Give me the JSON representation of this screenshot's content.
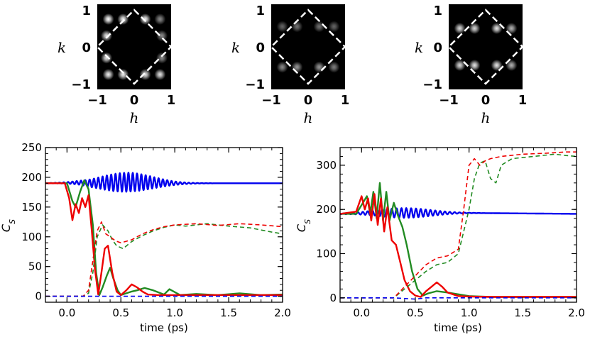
{
  "chart_data": [
    {
      "type": "heatmap",
      "title": "",
      "xlabel": "h",
      "ylabel": "k",
      "xlim": [
        -1.2,
        1.2
      ],
      "ylim": [
        -1.2,
        1.2
      ],
      "xticks": [
        "−1",
        "0",
        "1"
      ],
      "yticks": [
        "−1",
        "0",
        "1"
      ],
      "brillouin_zone": [
        [
          0,
          1
        ],
        [
          1,
          0
        ],
        [
          0,
          -1
        ],
        [
          -1,
          0
        ]
      ],
      "peaks": [
        {
          "h": -0.7,
          "k": 0.75,
          "i": 1.0
        },
        {
          "h": -0.3,
          "k": 0.75,
          "i": 0.95
        },
        {
          "h": 0.3,
          "k": 0.75,
          "i": 0.95
        },
        {
          "h": 0.7,
          "k": 0.75,
          "i": 0.55
        },
        {
          "h": -1.05,
          "k": 0.75,
          "i": 0.35
        },
        {
          "h": -0.75,
          "k": 0.3,
          "i": 0.9
        },
        {
          "h": -0.75,
          "k": -0.3,
          "i": 0.9
        },
        {
          "h": 0.75,
          "k": 0.3,
          "i": 0.55
        },
        {
          "h": 0.75,
          "k": -0.3,
          "i": 0.55
        },
        {
          "h": -0.7,
          "k": -0.75,
          "i": 0.95
        },
        {
          "h": -0.3,
          "k": -0.75,
          "i": 0.95
        },
        {
          "h": 0.3,
          "k": -0.75,
          "i": 0.9
        },
        {
          "h": 0.7,
          "k": -0.75,
          "i": 0.9
        },
        {
          "h": -1.05,
          "k": -0.75,
          "i": 0.35
        }
      ]
    },
    {
      "type": "heatmap",
      "title": "",
      "xlabel": "h",
      "ylabel": "k",
      "xlim": [
        -1.2,
        1.2
      ],
      "ylim": [
        -1.2,
        1.2
      ],
      "xticks": [
        "−1",
        "0",
        "1"
      ],
      "yticks": [
        "−1",
        "0",
        "1"
      ],
      "brillouin_zone": [
        [
          0,
          1
        ],
        [
          1,
          0
        ],
        [
          0,
          -1
        ],
        [
          -1,
          0
        ]
      ],
      "peaks": [
        {
          "h": -1.05,
          "k": 0.55,
          "i": 0.25
        },
        {
          "h": -0.7,
          "k": 0.55,
          "i": 0.4
        },
        {
          "h": -0.3,
          "k": 0.55,
          "i": 0.45
        },
        {
          "h": 0.3,
          "k": 0.55,
          "i": 0.45
        },
        {
          "h": 0.7,
          "k": 0.55,
          "i": 0.4
        },
        {
          "h": 1.05,
          "k": 0.55,
          "i": 0.25
        },
        {
          "h": -1.05,
          "k": -0.55,
          "i": 0.3
        },
        {
          "h": -0.7,
          "k": -0.55,
          "i": 0.55
        },
        {
          "h": -0.3,
          "k": -0.55,
          "i": 0.6
        },
        {
          "h": 0.3,
          "k": -0.55,
          "i": 0.6
        },
        {
          "h": 0.7,
          "k": -0.55,
          "i": 0.5
        },
        {
          "h": 1.05,
          "k": -0.55,
          "i": 0.3
        }
      ]
    },
    {
      "type": "heatmap",
      "title": "",
      "xlabel": "h",
      "ylabel": "k",
      "xlim": [
        -1.2,
        1.2
      ],
      "ylim": [
        -1.2,
        1.2
      ],
      "xticks": [
        "−1",
        "0",
        "1"
      ],
      "yticks": [
        "−1",
        "0",
        "1"
      ],
      "brillouin_zone": [
        [
          0,
          1
        ],
        [
          1,
          0
        ],
        [
          0,
          -1
        ],
        [
          -1,
          0
        ]
      ],
      "peaks": [
        {
          "h": -1.05,
          "k": 0.5,
          "i": 0.45
        },
        {
          "h": -0.7,
          "k": 0.5,
          "i": 0.85
        },
        {
          "h": -0.3,
          "k": 0.5,
          "i": 0.85
        },
        {
          "h": 0.3,
          "k": 0.5,
          "i": 0.9
        },
        {
          "h": 0.7,
          "k": 0.5,
          "i": 0.7
        },
        {
          "h": 1.05,
          "k": 0.5,
          "i": 0.4
        },
        {
          "h": -1.05,
          "k": -0.5,
          "i": 0.45
        },
        {
          "h": -0.7,
          "k": -0.5,
          "i": 0.85
        },
        {
          "h": -0.3,
          "k": -0.5,
          "i": 0.9
        },
        {
          "h": 0.3,
          "k": -0.5,
          "i": 0.9
        },
        {
          "h": 0.7,
          "k": -0.5,
          "i": 0.7
        },
        {
          "h": 1.05,
          "k": -0.5,
          "i": 0.4
        }
      ]
    },
    {
      "type": "line",
      "title": "",
      "xlabel": "time (ps)",
      "ylabel": "C_S",
      "xlim": [
        -0.2,
        2.0
      ],
      "ylim": [
        -10,
        250
      ],
      "xticks": [
        0.0,
        0.5,
        1.0,
        1.5,
        2.0
      ],
      "xtick_labels": [
        "0.0",
        "0.5",
        "1.0",
        "1.5",
        "2.0"
      ],
      "yticks": [
        0,
        50,
        100,
        150,
        200,
        250
      ],
      "ytick_labels": [
        "0",
        "50",
        "100",
        "150",
        "200",
        "250"
      ],
      "series": [
        {
          "name": "blue solid",
          "color": "#0000ee",
          "dash": false,
          "x": [
            -0.2,
            0.1,
            0.2,
            0.6,
            1.0,
            2.0
          ],
          "y": [
            190,
            191,
            190,
            192,
            190,
            190
          ],
          "oscillation": {
            "amplitude": 16,
            "t0": 0.55,
            "width": 0.35,
            "period": 0.04
          }
        },
        {
          "name": "green solid",
          "color": "#228b22",
          "dash": false,
          "x": [
            -0.2,
            0.0,
            0.05,
            0.08,
            0.12,
            0.16,
            0.2,
            0.24,
            0.27,
            0.3,
            0.33,
            0.37,
            0.4,
            0.43,
            0.47,
            0.5,
            0.55,
            0.6,
            0.65,
            0.72,
            0.8,
            0.9,
            0.95,
            1.05,
            1.2,
            1.4,
            1.6,
            1.8,
            2.0
          ],
          "y": [
            190,
            190,
            160,
            150,
            175,
            195,
            180,
            120,
            40,
            2,
            15,
            35,
            48,
            30,
            10,
            2,
            5,
            8,
            10,
            14,
            10,
            3,
            12,
            2,
            4,
            2,
            5,
            2,
            3
          ]
        },
        {
          "name": "red solid",
          "color": "#ee0000",
          "dash": false,
          "x": [
            -0.2,
            -0.02,
            0.02,
            0.05,
            0.08,
            0.11,
            0.14,
            0.17,
            0.2,
            0.23,
            0.26,
            0.29,
            0.32,
            0.35,
            0.38,
            0.42,
            0.46,
            0.5,
            0.55,
            0.6,
            0.65,
            0.7,
            0.75,
            0.85,
            1.0,
            1.2,
            1.5,
            2.0
          ],
          "y": [
            190,
            190,
            165,
            128,
            155,
            140,
            165,
            150,
            170,
            110,
            45,
            3,
            40,
            80,
            85,
            40,
            8,
            2,
            10,
            20,
            15,
            8,
            3,
            2,
            2,
            2,
            2,
            2
          ]
        },
        {
          "name": "green dashed",
          "color": "#228b22",
          "dash": true,
          "x": [
            -0.2,
            0.15,
            0.2,
            0.24,
            0.28,
            0.33,
            0.38,
            0.42,
            0.46,
            0.52,
            0.6,
            0.7,
            0.8,
            0.9,
            1.0,
            1.1,
            1.3,
            1.5,
            1.7,
            1.9,
            2.0
          ],
          "y": [
            0,
            0,
            5,
            40,
            100,
            120,
            110,
            95,
            85,
            80,
            92,
            102,
            110,
            116,
            120,
            118,
            122,
            118,
            115,
            108,
            105
          ]
        },
        {
          "name": "red dashed",
          "color": "#ee0000",
          "dash": true,
          "x": [
            -0.2,
            0.15,
            0.2,
            0.24,
            0.28,
            0.32,
            0.36,
            0.4,
            0.45,
            0.5,
            0.6,
            0.7,
            0.8,
            0.9,
            1.0,
            1.2,
            1.4,
            1.6,
            1.8,
            2.0
          ],
          "y": [
            0,
            0,
            10,
            60,
            110,
            125,
            105,
            100,
            93,
            90,
            95,
            105,
            112,
            117,
            120,
            122,
            119,
            122,
            120,
            117
          ]
        },
        {
          "name": "blue dashed",
          "color": "#0000ee",
          "dash": true,
          "x": [
            -0.2,
            2.0
          ],
          "y": [
            0,
            0
          ]
        }
      ]
    },
    {
      "type": "line",
      "title": "",
      "xlabel": "time (ps)",
      "ylabel": "C_S",
      "xlim": [
        -0.2,
        2.0
      ],
      "ylim": [
        -10,
        340
      ],
      "xticks": [
        0.0,
        0.5,
        1.0,
        1.5,
        2.0
      ],
      "xtick_labels": [
        "0.0",
        "0.5",
        "1.0",
        "1.5",
        "2.0"
      ],
      "yticks": [
        0,
        100,
        200,
        300
      ],
      "ytick_labels": [
        "0",
        "100",
        "200",
        "300"
      ],
      "series": [
        {
          "name": "blue solid",
          "color": "#0000ee",
          "dash": false,
          "x": [
            -0.2,
            0.1,
            0.3,
            0.6,
            1.0,
            2.0
          ],
          "y": [
            190,
            192,
            192,
            192,
            192,
            190
          ],
          "oscillation": {
            "amplitude": 11,
            "t0": 0.4,
            "width": 0.35,
            "period": 0.045
          }
        },
        {
          "name": "green solid",
          "color": "#228b22",
          "dash": false,
          "x": [
            -0.2,
            -0.05,
            0.0,
            0.05,
            0.08,
            0.11,
            0.14,
            0.17,
            0.2,
            0.23,
            0.26,
            0.3,
            0.34,
            0.38,
            0.42,
            0.47,
            0.52,
            0.57,
            0.62,
            0.7,
            0.8,
            0.9,
            1.0,
            1.2,
            1.5,
            2.0
          ],
          "y": [
            190,
            190,
            210,
            230,
            190,
            240,
            180,
            260,
            175,
            240,
            175,
            215,
            185,
            160,
            120,
            60,
            20,
            5,
            10,
            15,
            12,
            8,
            4,
            2,
            2,
            2
          ]
        },
        {
          "name": "red solid",
          "color": "#ee0000",
          "dash": false,
          "x": [
            -0.2,
            -0.05,
            0.0,
            0.03,
            0.06,
            0.09,
            0.12,
            0.15,
            0.18,
            0.21,
            0.24,
            0.28,
            0.32,
            0.36,
            0.4,
            0.45,
            0.5,
            0.55,
            0.6,
            0.65,
            0.7,
            0.75,
            0.8,
            0.9,
            1.0,
            1.2,
            2.0
          ],
          "y": [
            190,
            195,
            230,
            200,
            225,
            175,
            235,
            165,
            225,
            150,
            205,
            130,
            120,
            80,
            40,
            15,
            5,
            2,
            15,
            25,
            35,
            25,
            12,
            4,
            3,
            2,
            2
          ]
        },
        {
          "name": "green dashed",
          "color": "#228b22",
          "dash": true,
          "x": [
            -0.2,
            0.3,
            0.4,
            0.5,
            0.6,
            0.7,
            0.8,
            0.9,
            0.95,
            1.0,
            1.05,
            1.1,
            1.15,
            1.2,
            1.25,
            1.3,
            1.4,
            1.6,
            1.8,
            1.9,
            2.0
          ],
          "y": [
            0,
            0,
            20,
            40,
            60,
            75,
            80,
            100,
            150,
            200,
            270,
            305,
            310,
            270,
            260,
            300,
            315,
            320,
            325,
            322,
            320
          ]
        },
        {
          "name": "red dashed",
          "color": "#ee0000",
          "dash": true,
          "x": [
            -0.2,
            0.3,
            0.4,
            0.5,
            0.6,
            0.7,
            0.8,
            0.9,
            0.95,
            1.0,
            1.05,
            1.1,
            1.15,
            1.2,
            1.3,
            1.5,
            1.7,
            1.9,
            2.0
          ],
          "y": [
            0,
            0,
            25,
            50,
            75,
            90,
            95,
            110,
            200,
            300,
            315,
            300,
            310,
            315,
            320,
            325,
            327,
            330,
            330
          ]
        },
        {
          "name": "blue dashed",
          "color": "#0000ee",
          "dash": true,
          "x": [
            -0.2,
            0.3,
            0.5,
            0.6,
            2.0
          ],
          "y": [
            0,
            0,
            -3,
            0,
            0
          ]
        }
      ]
    }
  ]
}
